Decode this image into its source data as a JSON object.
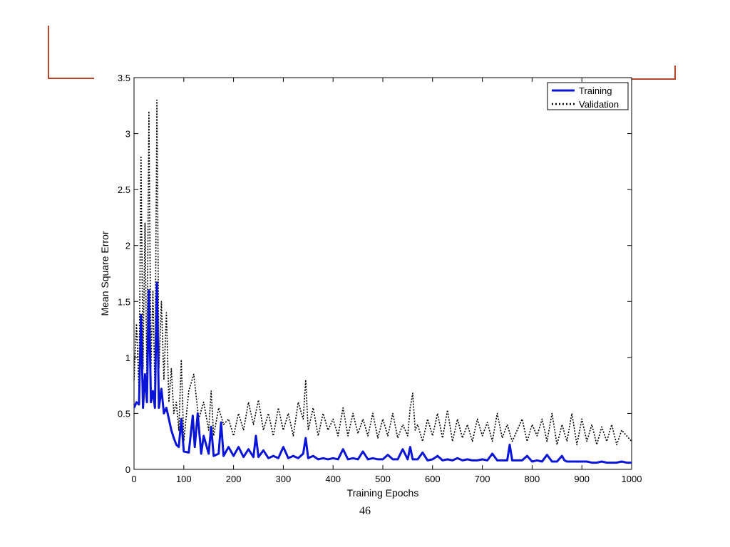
{
  "slide": {
    "page_number": "46",
    "accent_color": "#b5462a"
  },
  "chart_data": {
    "type": "line",
    "title": "",
    "xlabel": "Training Epochs",
    "ylabel": "Mean Square Error",
    "xlim": [
      0,
      1000
    ],
    "ylim": [
      0,
      3.5
    ],
    "xticks": [
      0,
      100,
      200,
      300,
      400,
      500,
      600,
      700,
      800,
      900,
      1000
    ],
    "yticks": [
      0,
      0.5,
      1,
      1.5,
      2,
      2.5,
      3,
      3.5
    ],
    "ytick_labels": [
      "0",
      "0.5",
      "1",
      "1.5",
      "2",
      "2.5",
      "3",
      "3.5"
    ],
    "grid": false,
    "legend_position": "top-right",
    "series": [
      {
        "name": "Training",
        "style": "solid",
        "color": "#0a14d6",
        "x": [
          0,
          5,
          10,
          14,
          18,
          22,
          26,
          30,
          34,
          38,
          42,
          46,
          50,
          55,
          60,
          65,
          70,
          75,
          80,
          85,
          90,
          95,
          100,
          110,
          118,
          122,
          128,
          135,
          140,
          150,
          155,
          160,
          170,
          175,
          180,
          190,
          200,
          210,
          220,
          230,
          240,
          245,
          250,
          260,
          270,
          280,
          290,
          300,
          310,
          320,
          330,
          340,
          345,
          350,
          360,
          370,
          380,
          390,
          400,
          410,
          420,
          430,
          440,
          450,
          460,
          470,
          480,
          490,
          500,
          510,
          520,
          530,
          540,
          550,
          555,
          560,
          570,
          580,
          590,
          600,
          610,
          620,
          630,
          640,
          650,
          660,
          670,
          680,
          690,
          700,
          710,
          720,
          730,
          740,
          750,
          755,
          760,
          770,
          780,
          790,
          800,
          810,
          820,
          830,
          840,
          850,
          860,
          865,
          870,
          880,
          890,
          900,
          910,
          920,
          930,
          940,
          950,
          960,
          970,
          980,
          990,
          1000
        ],
        "values": [
          0.55,
          0.6,
          0.58,
          1.38,
          0.55,
          0.85,
          0.6,
          1.6,
          0.6,
          0.7,
          0.55,
          1.67,
          0.55,
          0.72,
          0.5,
          0.55,
          0.45,
          0.35,
          0.28,
          0.22,
          0.2,
          0.45,
          0.16,
          0.15,
          0.48,
          0.2,
          0.5,
          0.14,
          0.3,
          0.14,
          0.38,
          0.12,
          0.14,
          0.42,
          0.12,
          0.2,
          0.12,
          0.2,
          0.11,
          0.18,
          0.11,
          0.3,
          0.11,
          0.17,
          0.1,
          0.12,
          0.1,
          0.2,
          0.1,
          0.12,
          0.1,
          0.14,
          0.28,
          0.1,
          0.12,
          0.09,
          0.1,
          0.09,
          0.1,
          0.09,
          0.18,
          0.09,
          0.1,
          0.09,
          0.16,
          0.09,
          0.1,
          0.09,
          0.09,
          0.13,
          0.09,
          0.09,
          0.18,
          0.09,
          0.2,
          0.09,
          0.09,
          0.15,
          0.08,
          0.09,
          0.12,
          0.08,
          0.09,
          0.08,
          0.1,
          0.08,
          0.09,
          0.08,
          0.08,
          0.09,
          0.08,
          0.14,
          0.08,
          0.08,
          0.08,
          0.22,
          0.08,
          0.08,
          0.08,
          0.12,
          0.07,
          0.08,
          0.07,
          0.13,
          0.07,
          0.07,
          0.12,
          0.08,
          0.07,
          0.07,
          0.07,
          0.07,
          0.07,
          0.06,
          0.06,
          0.07,
          0.06,
          0.06,
          0.06,
          0.07,
          0.06,
          0.06
        ]
      },
      {
        "name": "Validation",
        "style": "dotted",
        "color": "#000000",
        "x": [
          0,
          5,
          10,
          14,
          18,
          22,
          26,
          30,
          34,
          38,
          42,
          46,
          50,
          55,
          60,
          65,
          70,
          75,
          80,
          85,
          90,
          95,
          100,
          110,
          120,
          130,
          140,
          150,
          155,
          160,
          170,
          180,
          190,
          200,
          210,
          220,
          230,
          240,
          250,
          260,
          270,
          280,
          290,
          300,
          310,
          320,
          330,
          340,
          345,
          350,
          360,
          370,
          380,
          390,
          400,
          410,
          420,
          430,
          440,
          450,
          460,
          470,
          480,
          490,
          500,
          510,
          520,
          530,
          540,
          550,
          555,
          560,
          565,
          570,
          580,
          590,
          600,
          610,
          620,
          630,
          640,
          650,
          660,
          670,
          680,
          690,
          700,
          710,
          720,
          730,
          740,
          750,
          760,
          770,
          780,
          790,
          800,
          810,
          820,
          830,
          840,
          850,
          860,
          870,
          880,
          890,
          900,
          910,
          920,
          930,
          940,
          950,
          960,
          970,
          980,
          990,
          1000
        ],
        "values": [
          0.8,
          1.3,
          0.7,
          2.8,
          0.9,
          2.2,
          0.8,
          3.2,
          0.9,
          1.6,
          0.7,
          3.3,
          0.9,
          1.5,
          0.8,
          1.4,
          0.6,
          0.9,
          0.5,
          0.6,
          0.35,
          0.98,
          0.25,
          0.7,
          0.85,
          0.45,
          0.6,
          0.35,
          0.7,
          0.3,
          0.55,
          0.4,
          0.45,
          0.3,
          0.5,
          0.35,
          0.6,
          0.4,
          0.62,
          0.35,
          0.5,
          0.3,
          0.55,
          0.35,
          0.5,
          0.3,
          0.6,
          0.45,
          0.8,
          0.35,
          0.55,
          0.3,
          0.5,
          0.35,
          0.45,
          0.3,
          0.55,
          0.3,
          0.5,
          0.32,
          0.45,
          0.3,
          0.5,
          0.28,
          0.45,
          0.3,
          0.5,
          0.28,
          0.4,
          0.3,
          0.55,
          0.68,
          0.35,
          0.4,
          0.25,
          0.45,
          0.3,
          0.5,
          0.28,
          0.53,
          0.25,
          0.45,
          0.28,
          0.4,
          0.25,
          0.45,
          0.3,
          0.42,
          0.25,
          0.5,
          0.28,
          0.4,
          0.25,
          0.35,
          0.45,
          0.25,
          0.4,
          0.3,
          0.45,
          0.25,
          0.5,
          0.22,
          0.4,
          0.25,
          0.5,
          0.22,
          0.45,
          0.25,
          0.4,
          0.22,
          0.38,
          0.25,
          0.4,
          0.22,
          0.35,
          0.3,
          0.25
        ]
      }
    ]
  }
}
